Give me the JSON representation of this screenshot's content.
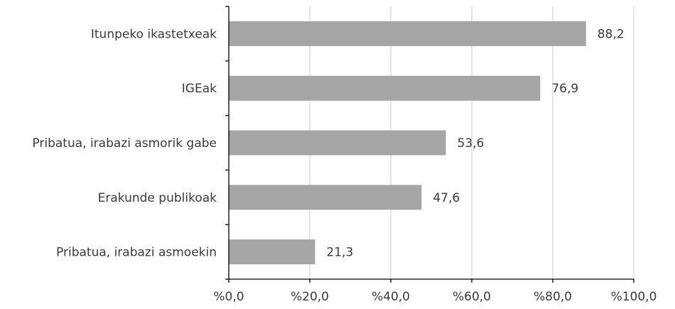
{
  "chart_data": {
    "type": "bar",
    "orientation": "horizontal",
    "categories": [
      "Itunpeko ikastetxeak",
      "IGEak",
      "Pribatua, irabazi asmorik gabe",
      "Erakunde publikoak",
      "Pribatua, irabazi asmoekin"
    ],
    "values": [
      88.2,
      76.9,
      53.6,
      47.6,
      21.3
    ],
    "value_labels": [
      "88,2",
      "76,9",
      "53,6",
      "47,6",
      "21,3"
    ],
    "xlim": [
      0,
      100
    ],
    "x_ticks": [
      0,
      20,
      40,
      60,
      80,
      100
    ],
    "x_tick_labels": [
      "%0,0",
      "%20,0",
      "%40,0",
      "%60,0",
      "%80,0",
      "%100,0"
    ],
    "grid": "vertical",
    "bar_color": "#a5a5a5",
    "grid_color": "#d9d9d9",
    "axis_color": "#000000",
    "text_color": "#3a3a3a"
  }
}
